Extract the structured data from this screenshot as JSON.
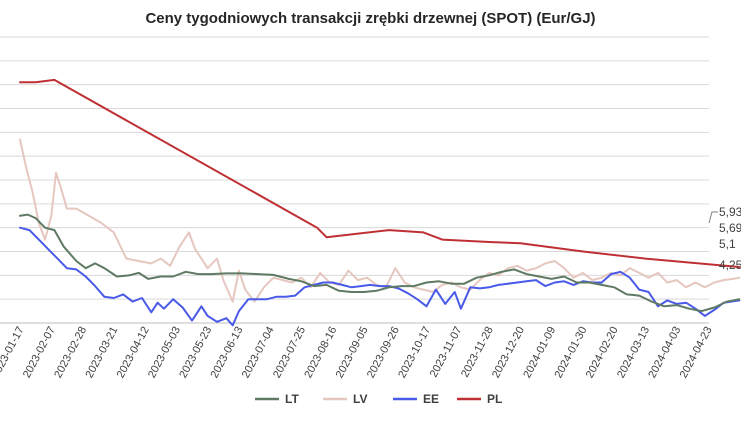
{
  "chart_data": {
    "type": "line",
    "title": "Ceny tygodniowych transakcji zrębki drzewnej (SPOT) (Eur/GJ)",
    "xlabel": "",
    "ylabel": "",
    "grid": true,
    "legend_position": "bottom",
    "ylim": [
      3,
      15
    ],
    "x_tick_labels": [
      "2023-01-17",
      "2023-02-07",
      "2023-02-28",
      "2023-03-21",
      "2023-04-12",
      "2023-05-03",
      "2023-05-23",
      "2023-06-13",
      "2023-07-04",
      "2023-07-25",
      "2023-08-16",
      "2023-09-05",
      "2023-09-26",
      "2023-10-17",
      "2023-11-07",
      "2023-11-28",
      "2023-12-20",
      "2024-01-09",
      "2024-01-30",
      "2024-02-20",
      "2024-03-13",
      "2024-04-03",
      "2024-04-23"
    ],
    "end_labels": [
      "5,93",
      "5,69",
      "5,1",
      "4,25"
    ],
    "series": [
      {
        "name": "LT",
        "color": "#5f7a63",
        "points": [
          [
            0,
            7.5
          ],
          [
            0.25,
            7.55
          ],
          [
            0.5,
            7.4
          ],
          [
            0.8,
            7.0
          ],
          [
            1.1,
            6.9
          ],
          [
            1.4,
            6.2
          ],
          [
            1.8,
            5.6
          ],
          [
            2.1,
            5.3
          ],
          [
            2.4,
            5.5
          ],
          [
            2.7,
            5.3
          ],
          [
            3.1,
            4.95
          ],
          [
            3.5,
            5.0
          ],
          [
            3.8,
            5.1
          ],
          [
            4.1,
            4.85
          ],
          [
            4.5,
            4.95
          ],
          [
            4.9,
            4.95
          ],
          [
            5.3,
            5.15
          ],
          [
            5.7,
            5.05
          ],
          [
            6.1,
            5.05
          ],
          [
            6.6,
            5.08
          ],
          [
            7.1,
            5.08
          ],
          [
            7.6,
            5.05
          ],
          [
            8.1,
            5.02
          ],
          [
            8.6,
            4.85
          ],
          [
            9.0,
            4.75
          ],
          [
            9.4,
            4.55
          ],
          [
            9.8,
            4.6
          ],
          [
            10.2,
            4.35
          ],
          [
            10.6,
            4.3
          ],
          [
            11.0,
            4.3
          ],
          [
            11.4,
            4.35
          ],
          [
            11.8,
            4.5
          ],
          [
            12.2,
            4.55
          ],
          [
            12.6,
            4.55
          ],
          [
            13.0,
            4.7
          ],
          [
            13.4,
            4.75
          ],
          [
            13.8,
            4.65
          ],
          [
            14.2,
            4.65
          ],
          [
            14.6,
            4.9
          ],
          [
            15.0,
            5.0
          ],
          [
            15.4,
            5.15
          ],
          [
            15.8,
            5.25
          ],
          [
            16.2,
            5.05
          ],
          [
            16.6,
            4.95
          ],
          [
            17.0,
            4.85
          ],
          [
            17.4,
            4.95
          ],
          [
            17.8,
            4.7
          ],
          [
            18.2,
            4.7
          ],
          [
            18.6,
            4.6
          ],
          [
            19.0,
            4.5
          ],
          [
            19.4,
            4.2
          ],
          [
            19.8,
            4.15
          ],
          [
            20.2,
            3.9
          ],
          [
            20.6,
            3.7
          ],
          [
            21.0,
            3.75
          ],
          [
            21.4,
            3.6
          ],
          [
            21.8,
            3.5
          ],
          [
            22.2,
            3.65
          ],
          [
            22.6,
            3.9
          ],
          [
            23.0,
            4.0
          ]
        ]
      },
      {
        "name": "LV",
        "color": "#e6c7c0",
        "points": [
          [
            0,
            10.7
          ],
          [
            0.2,
            9.5
          ],
          [
            0.4,
            8.5
          ],
          [
            0.6,
            7.2
          ],
          [
            0.8,
            6.5
          ],
          [
            1.0,
            7.5
          ],
          [
            1.15,
            9.3
          ],
          [
            1.3,
            8.7
          ],
          [
            1.5,
            7.8
          ],
          [
            1.8,
            7.8
          ],
          [
            2.2,
            7.5
          ],
          [
            2.6,
            7.2
          ],
          [
            3.0,
            6.8
          ],
          [
            3.4,
            5.7
          ],
          [
            3.8,
            5.6
          ],
          [
            4.2,
            5.5
          ],
          [
            4.5,
            5.7
          ],
          [
            4.8,
            5.4
          ],
          [
            5.1,
            6.2
          ],
          [
            5.4,
            6.8
          ],
          [
            5.6,
            6.1
          ],
          [
            5.8,
            5.7
          ],
          [
            6.0,
            5.3
          ],
          [
            6.3,
            5.7
          ],
          [
            6.5,
            4.8
          ],
          [
            6.8,
            3.9
          ],
          [
            7.0,
            5.2
          ],
          [
            7.2,
            4.4
          ],
          [
            7.5,
            3.9
          ],
          [
            7.8,
            4.5
          ],
          [
            8.1,
            4.9
          ],
          [
            8.4,
            4.8
          ],
          [
            8.7,
            4.7
          ],
          [
            9.0,
            4.9
          ],
          [
            9.3,
            4.5
          ],
          [
            9.6,
            5.1
          ],
          [
            9.9,
            4.7
          ],
          [
            10.2,
            4.6
          ],
          [
            10.5,
            5.2
          ],
          [
            10.8,
            4.8
          ],
          [
            11.1,
            4.9
          ],
          [
            11.4,
            4.6
          ],
          [
            11.7,
            4.5
          ],
          [
            12.0,
            5.3
          ],
          [
            12.3,
            4.7
          ],
          [
            12.6,
            4.5
          ],
          [
            12.9,
            4.4
          ],
          [
            13.2,
            4.3
          ],
          [
            13.5,
            4.6
          ],
          [
            13.8,
            4.7
          ],
          [
            14.1,
            4.5
          ],
          [
            14.4,
            4.4
          ],
          [
            14.7,
            4.8
          ],
          [
            15.0,
            5.1
          ],
          [
            15.3,
            5.0
          ],
          [
            15.6,
            5.3
          ],
          [
            15.9,
            5.4
          ],
          [
            16.2,
            5.2
          ],
          [
            16.5,
            5.3
          ],
          [
            16.8,
            5.5
          ],
          [
            17.1,
            5.6
          ],
          [
            17.4,
            5.3
          ],
          [
            17.7,
            4.9
          ],
          [
            18.0,
            5.1
          ],
          [
            18.3,
            4.8
          ],
          [
            18.6,
            4.9
          ],
          [
            18.9,
            5.1
          ],
          [
            19.2,
            5.0
          ],
          [
            19.5,
            5.3
          ],
          [
            19.8,
            5.1
          ],
          [
            20.1,
            4.9
          ],
          [
            20.4,
            5.1
          ],
          [
            20.7,
            4.7
          ],
          [
            21.0,
            4.8
          ],
          [
            21.3,
            4.5
          ],
          [
            21.6,
            4.7
          ],
          [
            21.9,
            4.5
          ],
          [
            22.2,
            4.7
          ],
          [
            22.5,
            4.8
          ],
          [
            22.8,
            4.85
          ],
          [
            23.0,
            4.9
          ]
        ]
      },
      {
        "name": "EE",
        "color": "#4a5ae8",
        "points": [
          [
            0,
            7.0
          ],
          [
            0.3,
            6.9
          ],
          [
            0.6,
            6.5
          ],
          [
            0.9,
            6.1
          ],
          [
            1.2,
            5.7
          ],
          [
            1.5,
            5.3
          ],
          [
            1.8,
            5.25
          ],
          [
            2.1,
            4.95
          ],
          [
            2.4,
            4.55
          ],
          [
            2.7,
            4.1
          ],
          [
            3.0,
            4.05
          ],
          [
            3.3,
            4.2
          ],
          [
            3.6,
            3.9
          ],
          [
            3.9,
            4.05
          ],
          [
            4.2,
            3.45
          ],
          [
            4.4,
            3.85
          ],
          [
            4.6,
            3.6
          ],
          [
            4.9,
            4.0
          ],
          [
            5.2,
            3.65
          ],
          [
            5.5,
            3.1
          ],
          [
            5.8,
            3.7
          ],
          [
            6.0,
            3.3
          ],
          [
            6.3,
            3.05
          ],
          [
            6.6,
            3.2
          ],
          [
            6.8,
            2.9
          ],
          [
            7.0,
            3.5
          ],
          [
            7.3,
            4.0
          ],
          [
            7.6,
            4.0
          ],
          [
            7.9,
            4.0
          ],
          [
            8.2,
            4.1
          ],
          [
            8.5,
            4.1
          ],
          [
            8.8,
            4.15
          ],
          [
            9.1,
            4.5
          ],
          [
            9.4,
            4.6
          ],
          [
            9.7,
            4.7
          ],
          [
            10.0,
            4.7
          ],
          [
            10.3,
            4.6
          ],
          [
            10.6,
            4.5
          ],
          [
            10.9,
            4.55
          ],
          [
            11.2,
            4.6
          ],
          [
            11.5,
            4.55
          ],
          [
            11.8,
            4.55
          ],
          [
            12.1,
            4.45
          ],
          [
            12.4,
            4.25
          ],
          [
            12.7,
            4.0
          ],
          [
            13.0,
            3.7
          ],
          [
            13.3,
            4.4
          ],
          [
            13.6,
            3.8
          ],
          [
            13.9,
            4.3
          ],
          [
            14.1,
            3.6
          ],
          [
            14.4,
            4.5
          ],
          [
            14.7,
            4.45
          ],
          [
            15.0,
            4.5
          ],
          [
            15.3,
            4.6
          ],
          [
            15.6,
            4.65
          ],
          [
            15.9,
            4.7
          ],
          [
            16.2,
            4.75
          ],
          [
            16.5,
            4.8
          ],
          [
            16.8,
            4.55
          ],
          [
            17.1,
            4.7
          ],
          [
            17.4,
            4.75
          ],
          [
            17.7,
            4.6
          ],
          [
            18.0,
            4.75
          ],
          [
            18.3,
            4.7
          ],
          [
            18.6,
            4.7
          ],
          [
            18.9,
            5.05
          ],
          [
            19.2,
            5.15
          ],
          [
            19.5,
            4.9
          ],
          [
            19.8,
            4.4
          ],
          [
            20.1,
            4.3
          ],
          [
            20.4,
            3.7
          ],
          [
            20.7,
            3.95
          ],
          [
            21.0,
            3.8
          ],
          [
            21.3,
            3.85
          ],
          [
            21.6,
            3.6
          ],
          [
            21.9,
            3.3
          ],
          [
            22.2,
            3.55
          ],
          [
            22.5,
            3.85
          ],
          [
            23.0,
            3.95
          ]
        ]
      },
      {
        "name": "PL",
        "color": "#bf3035",
        "points": [
          [
            0,
            13.1
          ],
          [
            0.5,
            13.1
          ],
          [
            1.1,
            13.2
          ],
          [
            9.5,
            7.0
          ],
          [
            9.8,
            6.6
          ],
          [
            11.8,
            6.9
          ],
          [
            12.9,
            6.8
          ],
          [
            13.5,
            6.5
          ],
          [
            15.0,
            6.4
          ],
          [
            16.0,
            6.35
          ],
          [
            18.0,
            6.0
          ],
          [
            20.0,
            5.7
          ],
          [
            23.0,
            5.35
          ]
        ]
      }
    ]
  }
}
